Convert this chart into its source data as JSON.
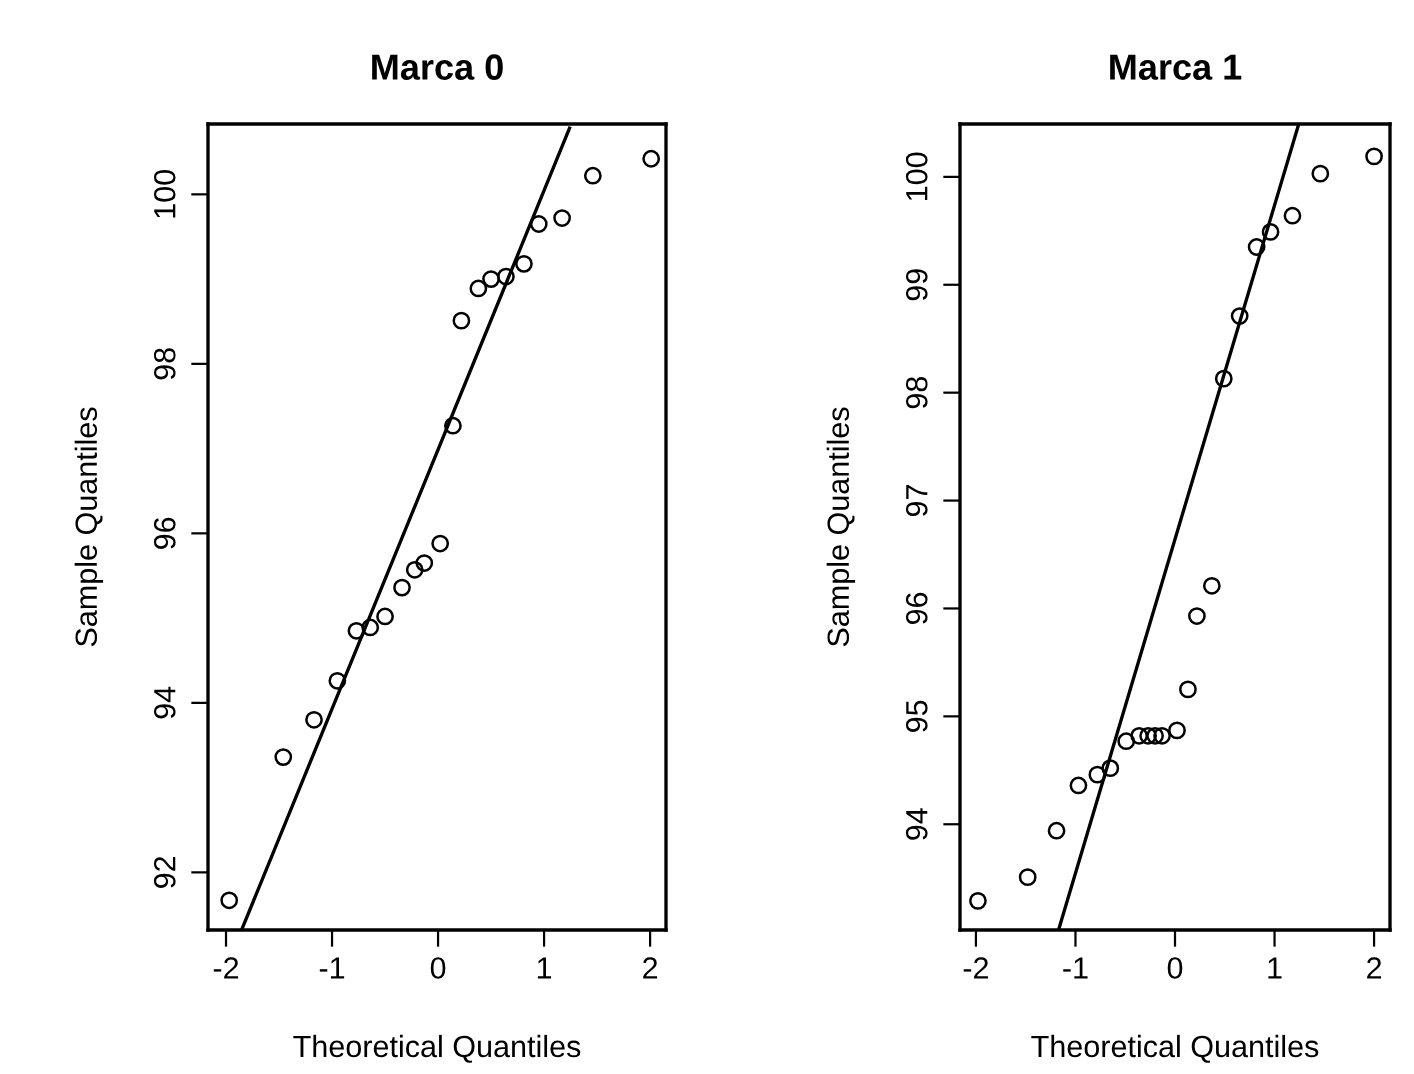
{
  "chart_data": [
    {
      "type": "scatter",
      "title": "Marca 0",
      "xlabel": "Theoretical Quantiles",
      "ylabel": "Sample Quantiles",
      "xlim": [
        -2.17,
        2.15
      ],
      "ylim": [
        91.32,
        100.83
      ],
      "xticks": [
        -2,
        -1,
        0,
        1,
        2
      ],
      "yticks": [
        92,
        94,
        96,
        98,
        100
      ],
      "grid": false,
      "legend": false,
      "series": [
        {
          "marker": "circle",
          "color": "#000000",
          "x": [
            -1.97,
            -1.46,
            -1.17,
            -0.95,
            -0.77,
            -0.64,
            -0.5,
            -0.34,
            -0.22,
            -0.13,
            0.02,
            0.14,
            0.22,
            0.38,
            0.5,
            0.64,
            0.81,
            0.95,
            1.17,
            1.46,
            2.01
          ],
          "values": [
            91.67,
            93.36,
            93.8,
            94.26,
            94.85,
            94.89,
            95.02,
            95.36,
            95.57,
            95.65,
            95.88,
            97.27,
            98.51,
            98.89,
            99.0,
            99.03,
            99.18,
            99.65,
            99.72,
            100.22,
            100.42
          ]
        },
        {
          "type": "line",
          "line_style": "solid",
          "color": "#000000",
          "x": [
            -1.85,
            1.24
          ],
          "values": [
            91.33,
            100.78
          ]
        }
      ]
    },
    {
      "type": "scatter",
      "title": "Marca 1",
      "xlabel": "Theoretical Quantiles",
      "ylabel": "Sample Quantiles",
      "xlim": [
        -2.16,
        2.16
      ],
      "ylim": [
        93.02,
        100.49
      ],
      "xticks": [
        -2,
        -1,
        0,
        1,
        2
      ],
      "yticks": [
        94,
        95,
        96,
        97,
        98,
        99,
        100
      ],
      "grid": false,
      "legend": false,
      "series": [
        {
          "marker": "circle",
          "color": "#000000",
          "x": [
            -1.98,
            -1.48,
            -1.19,
            -0.97,
            -0.78,
            -0.65,
            -0.49,
            -0.36,
            -0.27,
            -0.2,
            -0.13,
            0.02,
            0.13,
            0.22,
            0.37,
            0.49,
            0.65,
            0.82,
            0.96,
            1.18,
            1.46,
            2.0
          ],
          "values": [
            93.29,
            93.51,
            93.94,
            94.36,
            94.46,
            94.52,
            94.77,
            94.82,
            94.82,
            94.82,
            94.82,
            94.87,
            95.25,
            95.93,
            96.21,
            98.13,
            98.71,
            99.35,
            99.49,
            99.64,
            100.03,
            100.19
          ]
        },
        {
          "type": "line",
          "line_style": "solid",
          "color": "#000000",
          "x": [
            -1.17,
            1.24
          ],
          "values": [
            93.02,
            100.48
          ]
        }
      ]
    }
  ]
}
